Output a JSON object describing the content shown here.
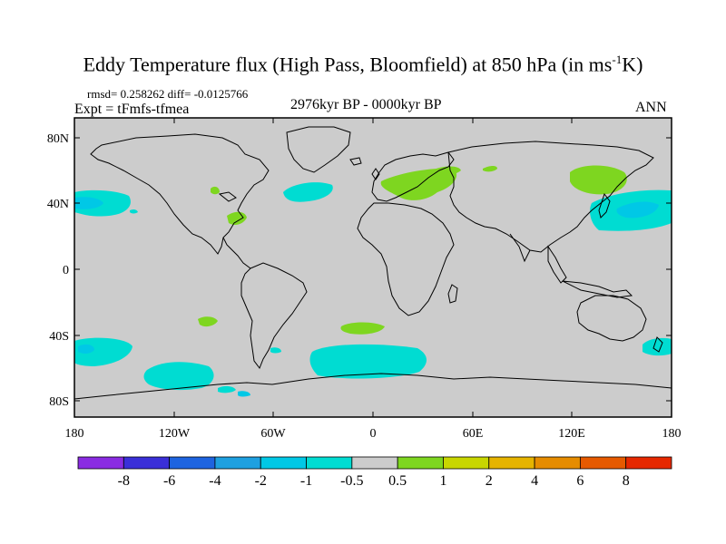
{
  "title": {
    "main": "Eddy Temperature flux (High Pass, Bloomfield) at 850 hPa (in ms",
    "sup": "-1",
    "end": "K)"
  },
  "header": {
    "rmsd": "rmsd= 0.258262 diff= -0.0125766",
    "expt": "Expt = tFmfs-tfmea",
    "period": "2976kyr BP - 0000kyr BP",
    "season": "ANN"
  },
  "map": {
    "lat_labels": [
      "80N",
      "40N",
      "0",
      "40S",
      "80S"
    ],
    "lon_labels": [
      "180",
      "120W",
      "60W",
      "0",
      "60E",
      "120E",
      "180"
    ],
    "background_color": "#cccccc",
    "coastline_color": "#000000"
  },
  "colorbar": {
    "colors": [
      "#8a2be2",
      "#3a2fd8",
      "#1e64e0",
      "#1ea0e0",
      "#00c8e6",
      "#00dcd2",
      "#cccccc",
      "#7ed620",
      "#c8d600",
      "#e6b400",
      "#e68c00",
      "#e65a00",
      "#e62800"
    ],
    "labels": [
      "-8",
      "-6",
      "-4",
      "-2",
      "-1",
      "-0.5",
      "0.5",
      "1",
      "2",
      "4",
      "6",
      "8"
    ]
  },
  "anomaly_colors": {
    "negative_small": "#00dcd2",
    "negative_mid": "#00c8e6",
    "positive_small": "#7ed620"
  }
}
